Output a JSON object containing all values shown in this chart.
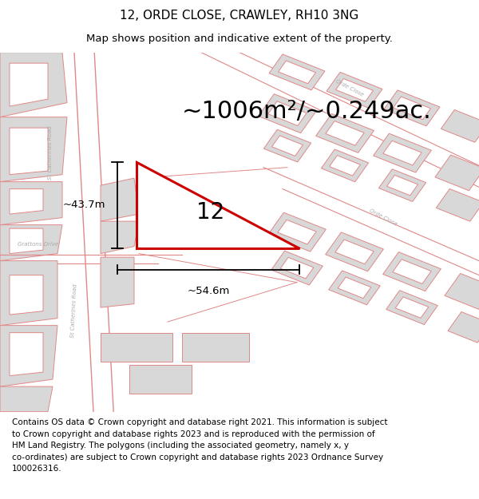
{
  "title_line1": "12, ORDE CLOSE, CRAWLEY, RH10 3NG",
  "title_line2": "Map shows position and indicative extent of the property.",
  "area_text": "~1006m²/~0.249ac.",
  "property_number": "12",
  "measurement_vertical": "~43.7m",
  "measurement_horizontal": "~54.6m",
  "footer_text": "Contains OS data © Crown copyright and database right 2021. This information is subject\nto Crown copyright and database rights 2023 and is reproduced with the permission of\nHM Land Registry. The polygons (including the associated geometry, namely x, y\nco-ordinates) are subject to Crown copyright and database rights 2023 Ordnance Survey\n100026316.",
  "map_bg": "#ffffff",
  "title_fontsize": 11,
  "subtitle_fontsize": 9.5,
  "area_fontsize": 22,
  "footer_fontsize": 7.5
}
